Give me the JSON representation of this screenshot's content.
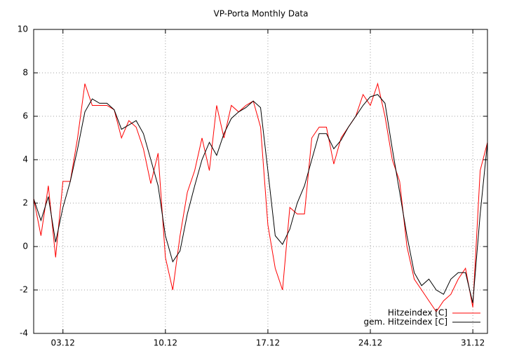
{
  "chart_data": {
    "type": "line",
    "title": "VP-Porta Monthly Data",
    "x": [
      1,
      1.5,
      2,
      2.5,
      3,
      3.5,
      4,
      4.5,
      5,
      5.5,
      6,
      6.5,
      7,
      7.5,
      8,
      8.5,
      9,
      9.5,
      10,
      10.5,
      11,
      11.5,
      12,
      12.5,
      13,
      13.5,
      14,
      14.5,
      15,
      15.5,
      16,
      16.5,
      17,
      17.5,
      18,
      18.5,
      19,
      19.5,
      20,
      20.5,
      21,
      21.5,
      22,
      22.5,
      23,
      23.5,
      24,
      24.5,
      25,
      25.5,
      26,
      26.5,
      27,
      27.5,
      28,
      28.5,
      29,
      29.5,
      30,
      30.5,
      31,
      31.5,
      32
    ],
    "series": [
      {
        "name": "Hitzeindex [C]",
        "color": "#ff0000",
        "values": [
          2.2,
          0.5,
          2.8,
          -0.5,
          3,
          3,
          5,
          7.5,
          6.5,
          6.5,
          6.5,
          6.3,
          5,
          5.8,
          5.5,
          4.5,
          2.9,
          4.3,
          -0.5,
          -2,
          0.5,
          2.5,
          3.5,
          5,
          3.5,
          6.5,
          5,
          6.5,
          6.2,
          6.5,
          6.7,
          5.5,
          1,
          -1,
          -2,
          1.8,
          1.5,
          1.5,
          5,
          5.5,
          5.5,
          3.8,
          5,
          5.5,
          6,
          7,
          6.5,
          7.5,
          6,
          4,
          3,
          0,
          -1.5,
          -2,
          -2.5,
          -3,
          -2.5,
          -2.2,
          -1.5,
          -1,
          -2.8,
          3.5,
          4.8
        ]
      },
      {
        "name": "gem. Hitzeindex [C]",
        "color": "#000000",
        "values": [
          2.2,
          1.2,
          2.3,
          0.2,
          1.8,
          3,
          4.5,
          6.2,
          6.8,
          6.6,
          6.6,
          6.3,
          5.4,
          5.6,
          5.8,
          5.2,
          4,
          2.8,
          0.5,
          -0.7,
          -0.2,
          1.5,
          2.8,
          4,
          4.8,
          4.2,
          5.2,
          5.9,
          6.2,
          6.4,
          6.7,
          6.4,
          3.5,
          0.5,
          0.1,
          0.8,
          2,
          2.8,
          4,
          5.2,
          5.2,
          4.5,
          4.9,
          5.5,
          6,
          6.5,
          6.9,
          7,
          6.6,
          4.5,
          2.5,
          0.5,
          -1.2,
          -1.8,
          -1.5,
          -2,
          -2.2,
          -1.5,
          -1.2,
          -1.2,
          -2.6,
          1.5,
          4.8
        ]
      }
    ],
    "xlim": [
      1,
      32
    ],
    "xticks": [
      {
        "value": 3,
        "label": "03.12"
      },
      {
        "value": 10,
        "label": "10.12"
      },
      {
        "value": 17,
        "label": "17.12"
      },
      {
        "value": 24,
        "label": "24.12"
      },
      {
        "value": 31,
        "label": "31.12"
      }
    ],
    "ylim": [
      -4,
      10
    ],
    "yticks": [
      -4,
      -2,
      0,
      2,
      4,
      6,
      8,
      10
    ],
    "grid": true,
    "legend": "lower right"
  }
}
